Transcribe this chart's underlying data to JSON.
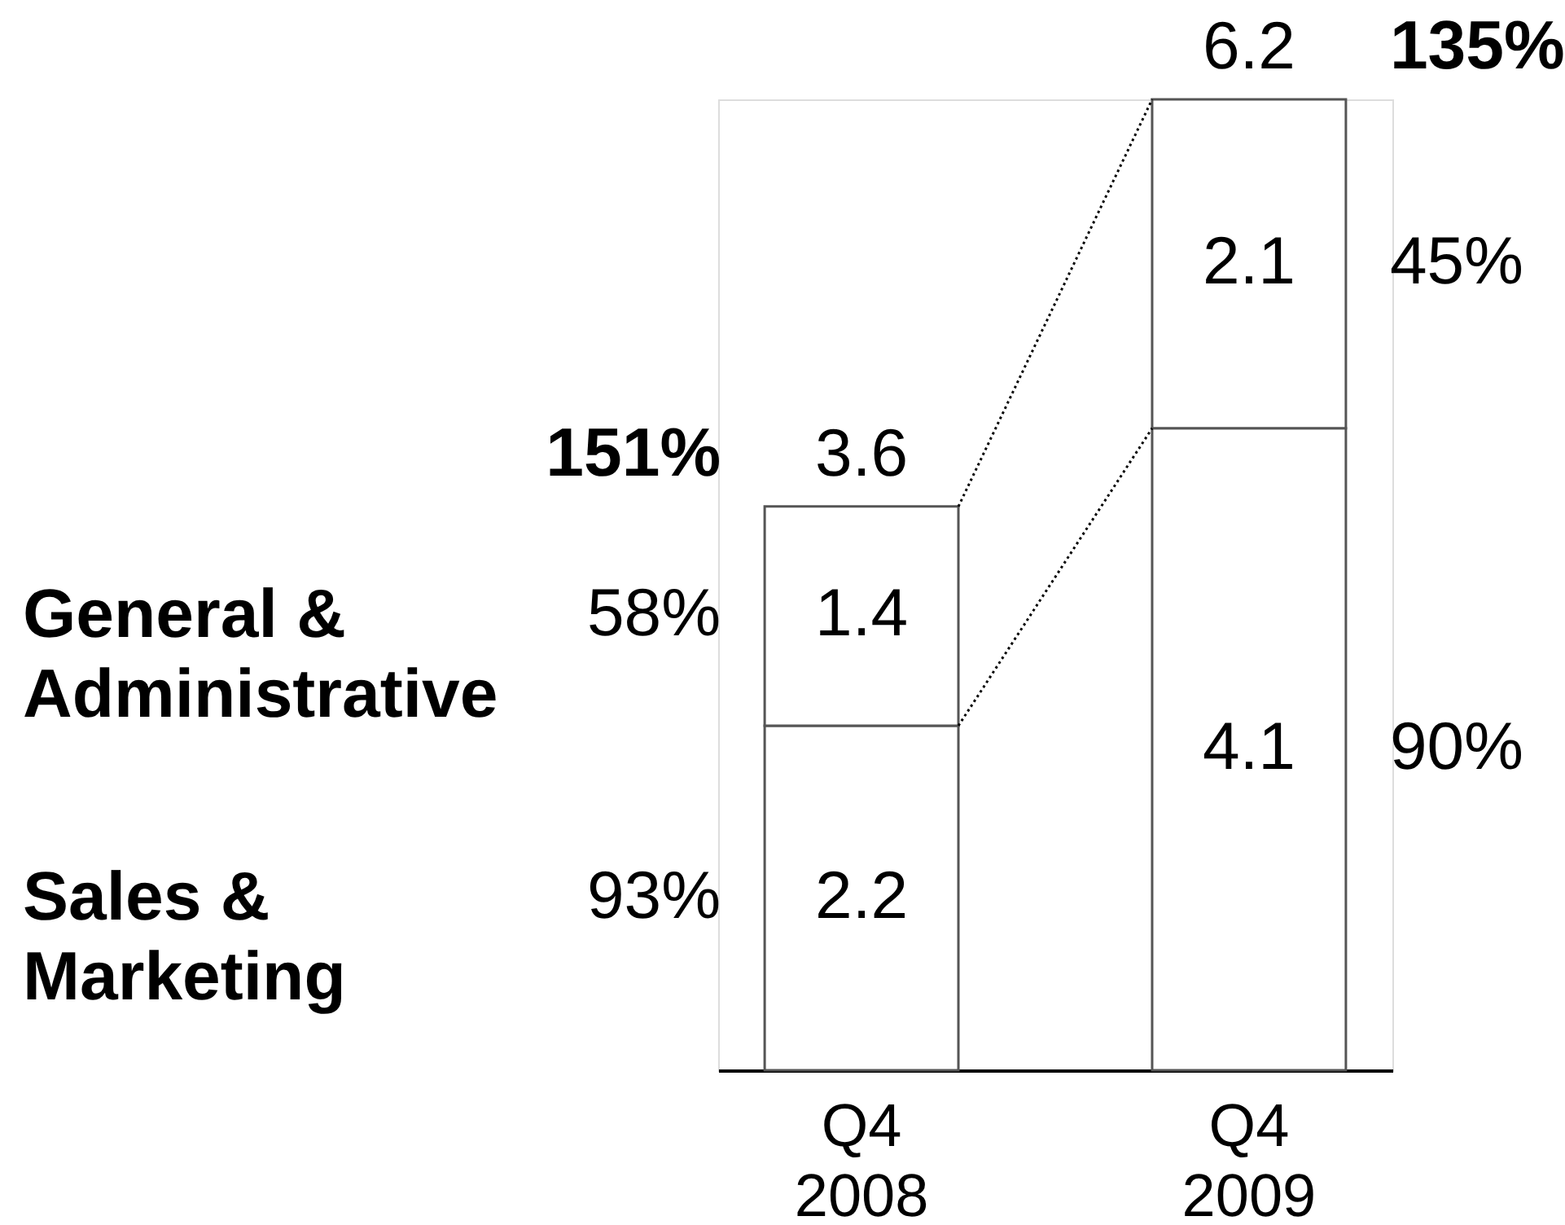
{
  "chart_data": {
    "type": "bar",
    "stacked": true,
    "categories": [
      "Q4 2008",
      "Q4 2009"
    ],
    "series": [
      {
        "color": "#ffffff",
        "values": [
          2.2,
          4.1
        ]
      },
      {
        "color": "#ffffff",
        "values": [
          1.4,
          2.1
        ]
      }
    ],
    "data_labels": true,
    "totals": [
      "3.6",
      "6.2"
    ],
    "annotations": [
      "93%",
      "58%",
      "90%",
      "45%",
      "Sales & Marketing",
      "General & Administrative",
      {
        "text": "151%",
        "x": "Q4 2008",
        "y": 3.6
      },
      {
        "text": "135%",
        "x": "Q4 2009",
        "y": 6.2
      }
    ],
    "tick_labels": "x"
  }
}
